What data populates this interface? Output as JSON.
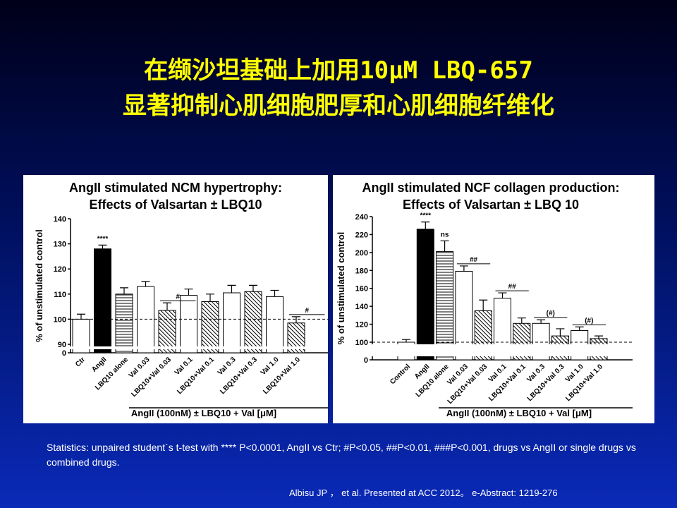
{
  "slide": {
    "title_lines": [
      "在缬沙坦基础上加用10μM LBQ-657",
      "显著抑制心肌细胞肥厚和心肌细胞纤维化"
    ],
    "statistics": "Statistics: unpaired student´s t-test with **** P<0.0001, AngII vs Ctr; #P<0.05, ##P<0.01, ###P<0.001, drugs vs AngII or single drugs  vs combined drugs.",
    "citation": "Albisu JP ，  et al. Presented at ACC 2012。 e-Abstract: 1219-276"
  },
  "chart_data": [
    {
      "type": "bar",
      "title_lines": [
        "AngII stimulated NCM hypertrophy:",
        "Effects of Valsartan ± LBQ10"
      ],
      "y_label": "% of unstimulated control",
      "x_label": "AngII (100nM) ± LBQ10 + Val [μM]",
      "categories": [
        "Ctr",
        "AngII",
        "LBQ10 alone",
        "Val 0.03",
        "LBQ10+Val 0.03",
        "Val 0.1",
        "LBQ10+Val 0.1",
        "Val 0.3",
        "LBQ10+Val 0.3",
        "Val 1.0",
        "LBQ10+Val 1.0"
      ],
      "values": [
        100,
        128,
        110,
        113,
        103.5,
        109.5,
        107,
        110.5,
        111,
        109,
        98.5
      ],
      "errors": [
        2,
        1.5,
        2.5,
        2,
        3,
        2.5,
        3,
        3,
        2.5,
        2.5,
        2.5
      ],
      "fills": [
        "white",
        "black",
        "hlines",
        "white",
        "dlines",
        "white",
        "dlines",
        "white",
        "dlines",
        "white",
        "dlines"
      ],
      "ylim": [
        0,
        140
      ],
      "yticks": [
        0,
        90,
        100,
        110,
        120,
        130,
        140
      ],
      "broken_axis": true,
      "reference_line": 100,
      "annotations": [
        {
          "text": "****",
          "category": "AngII"
        },
        {
          "text": "#",
          "category": "LBQ10+Val 0.03"
        },
        {
          "text": "#",
          "category": "LBQ10+Val 1.0"
        }
      ]
    },
    {
      "type": "bar",
      "title_lines": [
        "AngII stimulated NCF collagen production:",
        "Effects of Valsartan ± LBQ 10"
      ],
      "y_label": "% of unstimulated control",
      "x_label": "AngII (100nM) ± LBQ10 + Val [μM]",
      "categories": [
        "Control",
        "AngII",
        "LBQ10 alone",
        "Val 0.03",
        "LBQ10+Val 0.03",
        "Val 0.1",
        "LBQ10+Val 0.1",
        "Val 0.3",
        "LBQ10+Val 0.3",
        "Val 1.0",
        "LBQ10+Val 1.0"
      ],
      "values": [
        100,
        226,
        201,
        179,
        135,
        149,
        121,
        121,
        107,
        113,
        104
      ],
      "errors": [
        3,
        8,
        12,
        6,
        12,
        6,
        6,
        4,
        8,
        4,
        3
      ],
      "fills": [
        "white",
        "black",
        "hlines",
        "white",
        "dlines",
        "white",
        "dlines",
        "white",
        "dlines",
        "white",
        "dlines"
      ],
      "ylim": [
        0,
        240
      ],
      "yticks": [
        0,
        100,
        120,
        140,
        160,
        180,
        200,
        220,
        240
      ],
      "broken_axis": true,
      "reference_line": 100,
      "annotations": [
        {
          "text": "****",
          "category": "AngII"
        },
        {
          "text": "ns",
          "category": "LBQ10 alone"
        },
        {
          "text": "##",
          "category": "Val 0.03"
        },
        {
          "text": "##",
          "category": "Val 0.1"
        },
        {
          "text": "(#)",
          "category": "Val 0.3"
        },
        {
          "text": "(#)",
          "category": "Val 1.0"
        }
      ]
    }
  ]
}
